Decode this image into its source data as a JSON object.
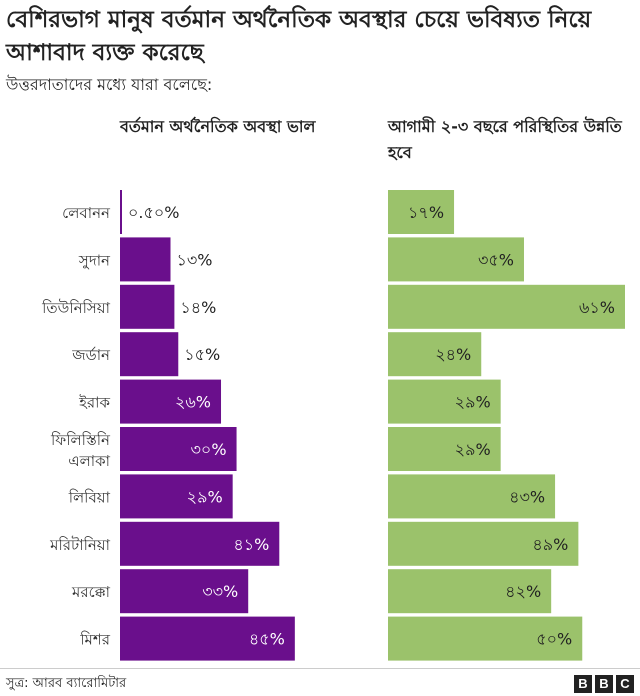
{
  "chart_data": {
    "type": "bar",
    "title": "বেশিরভাগ মানুষ বর্তমান অর্থনৈতিক অবস্থার চেয়ে ভবিষ্যত নিয়ে আশাবাদ ব্যক্ত করেছে",
    "subtitle": "উত্তরদাতাদের মধ্যে যারা বলেছে:",
    "categories": [
      "লেবানন",
      "সুদান",
      "তিউনিসিয়া",
      "জর্ডান",
      "ইরাক",
      "ফিলিস্তিনি এলাকা",
      "লিবিয়া",
      "মরিটানিয়া",
      "মরক্কো",
      "মিশর"
    ],
    "series": [
      {
        "name": "বর্তমান অর্থনৈতিক অবস্থা ভাল",
        "color": "#6a0f8c",
        "values": [
          0.5,
          13,
          14,
          15,
          26,
          30,
          29,
          41,
          33,
          45
        ],
        "labels": [
          "০.৫০%",
          "১৩%",
          "১৪%",
          "১৫%",
          "২৬%",
          "৩০%",
          "২৯%",
          "৪১%",
          "৩৩%",
          "৪৫%"
        ]
      },
      {
        "name": "আগামী ২-৩ বছরে পরিস্থিতির উন্নতি হবে",
        "color": "#9bc26b",
        "values": [
          17,
          35,
          61,
          24,
          29,
          29,
          43,
          49,
          42,
          50
        ],
        "labels": [
          "১৭%",
          "৩৫%",
          "৬১%",
          "২৪%",
          "২৯%",
          "২৯%",
          "৪৩%",
          "৪৯%",
          "৪২%",
          "৫০%"
        ]
      }
    ],
    "legend": "column-headers",
    "grid": false,
    "xlim": [
      0,
      61
    ]
  },
  "footer": {
    "source": "সুত্র: আরব ব্যারোমিটার",
    "logo_letters": [
      "B",
      "B",
      "C"
    ]
  }
}
